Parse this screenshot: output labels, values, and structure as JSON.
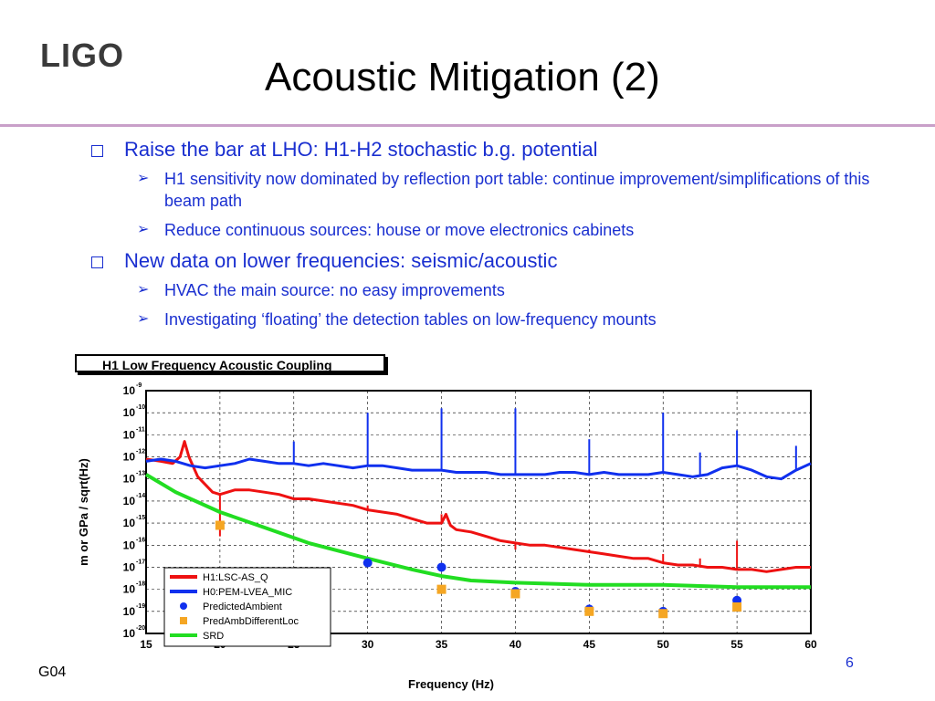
{
  "slide": {
    "logo": "LIGO",
    "title": "Acoustic Mitigation (2)",
    "bullets": [
      {
        "text": "Raise the bar at LHO: H1-H2 stochastic b.g. potential",
        "sub": [
          "H1 sensitivity now dominated by reflection port table: continue improvement/simplifications of this beam path",
          "Reduce continuous sources: house or move electronics cabinets"
        ]
      },
      {
        "text": "New data on lower frequencies: seismic/acoustic",
        "sub": [
          "HVAC the main source: no easy improvements",
          "Investigating ‘floating’ the detection tables on low-frequency mounts"
        ]
      }
    ],
    "footer_left": "G04",
    "page_number": "6",
    "colors": {
      "accent": "#1a2fd0",
      "rule": "#c9a0c9"
    }
  },
  "chart_data": {
    "type": "line",
    "title": "H1 Low Frequency Acoustic Coupling",
    "xlabel": "Frequency (Hz)",
    "ylabel": "m or GPa / sqrt(Hz)",
    "xlim": [
      15,
      60
    ],
    "ylim_exp": [
      -20,
      -9
    ],
    "y_scale": "log",
    "grid": true,
    "legend_position": "bottom-left",
    "x_ticks": [
      "15",
      "20",
      "25",
      "30",
      "35",
      "40",
      "45",
      "50",
      "55",
      "60"
    ],
    "y_tick_labels": [
      "10^-9",
      "10^-10",
      "10^-11",
      "10^-12",
      "10^-13",
      "10^-14",
      "10^-15",
      "10^-16",
      "10^-17",
      "10^-18",
      "10^-19",
      "10^-20"
    ],
    "series": [
      {
        "name": "H1:LSC-AS_Q",
        "kind": "line",
        "color": "#ee1111",
        "points": [
          [
            15,
            -12.1
          ],
          [
            16,
            -12.2
          ],
          [
            16.8,
            -12.3
          ],
          [
            17.3,
            -12.0
          ],
          [
            17.6,
            -11.3
          ],
          [
            17.9,
            -12.0
          ],
          [
            18.5,
            -12.9
          ],
          [
            19.5,
            -13.6
          ],
          [
            20,
            -13.7
          ],
          [
            21,
            -13.5
          ],
          [
            22,
            -13.5
          ],
          [
            23,
            -13.6
          ],
          [
            24,
            -13.7
          ],
          [
            25,
            -13.9
          ],
          [
            26,
            -13.9
          ],
          [
            27,
            -14.0
          ],
          [
            28,
            -14.1
          ],
          [
            29,
            -14.2
          ],
          [
            30,
            -14.4
          ],
          [
            31,
            -14.5
          ],
          [
            32,
            -14.6
          ],
          [
            33,
            -14.8
          ],
          [
            34,
            -15.0
          ],
          [
            35,
            -15.0
          ],
          [
            35.3,
            -14.6
          ],
          [
            35.6,
            -15.1
          ],
          [
            36,
            -15.3
          ],
          [
            37,
            -15.4
          ],
          [
            38,
            -15.6
          ],
          [
            39,
            -15.8
          ],
          [
            40,
            -15.9
          ],
          [
            41,
            -16.0
          ],
          [
            42,
            -16.0
          ],
          [
            43,
            -16.1
          ],
          [
            44,
            -16.2
          ],
          [
            45,
            -16.3
          ],
          [
            46,
            -16.4
          ],
          [
            47,
            -16.5
          ],
          [
            48,
            -16.6
          ],
          [
            49,
            -16.6
          ],
          [
            50,
            -16.8
          ],
          [
            51,
            -16.9
          ],
          [
            52,
            -16.9
          ],
          [
            53,
            -17.0
          ],
          [
            54,
            -17.0
          ],
          [
            55,
            -17.1
          ],
          [
            56,
            -17.1
          ],
          [
            57,
            -17.2
          ],
          [
            58,
            -17.1
          ],
          [
            59,
            -17.0
          ],
          [
            60,
            -17.0
          ]
        ]
      },
      {
        "name": "H0:PEM-LVEA_MIC",
        "kind": "line",
        "color": "#1030ee",
        "points": [
          [
            15,
            -12.2
          ],
          [
            16,
            -12.1
          ],
          [
            17,
            -12.2
          ],
          [
            18,
            -12.4
          ],
          [
            19,
            -12.5
          ],
          [
            20,
            -12.4
          ],
          [
            21,
            -12.3
          ],
          [
            22,
            -12.1
          ],
          [
            23,
            -12.2
          ],
          [
            24,
            -12.3
          ],
          [
            25,
            -12.3
          ],
          [
            26,
            -12.4
          ],
          [
            27,
            -12.3
          ],
          [
            28,
            -12.4
          ],
          [
            29,
            -12.5
          ],
          [
            30,
            -12.4
          ],
          [
            31,
            -12.4
          ],
          [
            32,
            -12.5
          ],
          [
            33,
            -12.6
          ],
          [
            34,
            -12.6
          ],
          [
            35,
            -12.6
          ],
          [
            36,
            -12.7
          ],
          [
            37,
            -12.7
          ],
          [
            38,
            -12.7
          ],
          [
            39,
            -12.8
          ],
          [
            40,
            -12.8
          ],
          [
            41,
            -12.8
          ],
          [
            42,
            -12.8
          ],
          [
            43,
            -12.7
          ],
          [
            44,
            -12.7
          ],
          [
            45,
            -12.8
          ],
          [
            46,
            -12.7
          ],
          [
            47,
            -12.8
          ],
          [
            48,
            -12.8
          ],
          [
            49,
            -12.8
          ],
          [
            50,
            -12.7
          ],
          [
            51,
            -12.8
          ],
          [
            52,
            -12.9
          ],
          [
            53,
            -12.8
          ],
          [
            54,
            -12.5
          ],
          [
            55,
            -12.4
          ],
          [
            56,
            -12.6
          ],
          [
            57,
            -12.9
          ],
          [
            58,
            -13.0
          ],
          [
            59,
            -12.6
          ],
          [
            60,
            -12.3
          ]
        ]
      },
      {
        "name": "SRD",
        "kind": "line",
        "color": "#22dd22",
        "points": [
          [
            15,
            -12.8
          ],
          [
            17,
            -13.6
          ],
          [
            20,
            -14.5
          ],
          [
            23,
            -15.2
          ],
          [
            26,
            -15.9
          ],
          [
            30,
            -16.6
          ],
          [
            33,
            -17.1
          ],
          [
            35,
            -17.4
          ],
          [
            37,
            -17.6
          ],
          [
            40,
            -17.7
          ],
          [
            45,
            -17.8
          ],
          [
            50,
            -17.8
          ],
          [
            55,
            -17.9
          ],
          [
            60,
            -17.9
          ]
        ]
      },
      {
        "name": "PredictedAmbient",
        "kind": "points",
        "color": "#1030ee",
        "points": [
          [
            30,
            -16.8
          ],
          [
            35,
            -17.0
          ],
          [
            40,
            -18.1
          ],
          [
            45,
            -18.9
          ],
          [
            50,
            -19.0
          ],
          [
            55,
            -18.5
          ]
        ]
      },
      {
        "name": "PredAmbDifferentLoc",
        "kind": "points",
        "color": "#f5a623",
        "points": [
          [
            20,
            -15.1
          ],
          [
            35,
            -18.0
          ],
          [
            40,
            -18.2
          ],
          [
            45,
            -19.0
          ],
          [
            50,
            -19.1
          ],
          [
            55,
            -18.8
          ]
        ]
      }
    ],
    "peaks": {
      "H1:LSC-AS_Q": [
        [
          20,
          -15.6
        ],
        [
          30,
          -14.2
        ],
        [
          35,
          -14.6
        ],
        [
          40,
          -16.2
        ],
        [
          45,
          -16.2
        ],
        [
          50,
          -16.4
        ],
        [
          52.5,
          -16.6
        ],
        [
          55,
          -15.8
        ]
      ],
      "H0:PEM-LVEA_MIC": [
        [
          25,
          -11.3
        ],
        [
          30,
          -10.0
        ],
        [
          35,
          -9.8
        ],
        [
          40,
          -9.8
        ],
        [
          45,
          -11.2
        ],
        [
          50,
          -10.0
        ],
        [
          52.5,
          -11.8
        ],
        [
          55,
          -10.8
        ],
        [
          59,
          -11.5
        ]
      ]
    }
  }
}
